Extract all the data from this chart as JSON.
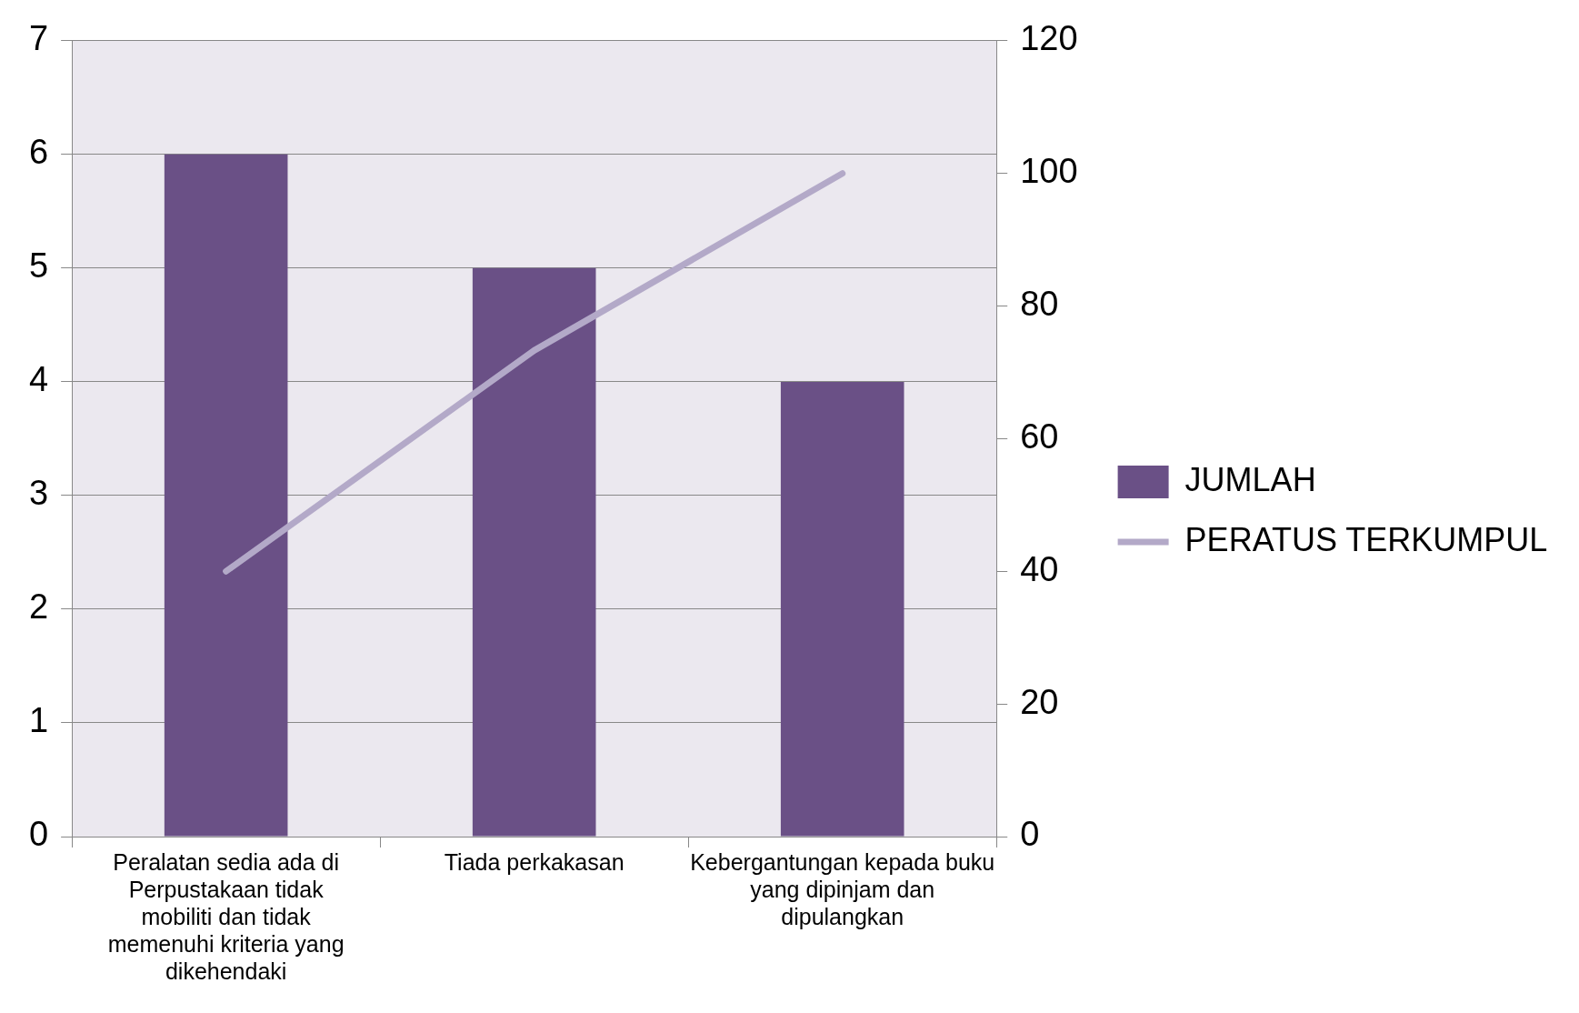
{
  "chart_data": {
    "type": "bar",
    "categories": [
      "Peralatan sedia ada di Perpustakaan tidak mobiliti dan tidak memenuhi kriteria yang dikehendaki",
      "Tiada perkakasan",
      "Kebergantungan kepada buku yang dipinjam dan dipulangkan"
    ],
    "series": [
      {
        "name": "JUMLAH",
        "color": "#6a5086",
        "values": [
          6,
          5,
          4
        ]
      },
      {
        "name": "PERATUS TERKUMPUL",
        "type": "line",
        "axis": "y2",
        "color": "#b3a9c8",
        "values": [
          40,
          73.3,
          100
        ]
      }
    ],
    "ylim": [
      0,
      7
    ],
    "yticks": [
      0,
      1,
      2,
      3,
      4,
      5,
      6,
      7
    ],
    "y2lim": [
      0,
      120
    ],
    "y2ticks": [
      0,
      20,
      40,
      60,
      80,
      100,
      120
    ],
    "grid": "y",
    "legend": "right",
    "marker": "none"
  }
}
